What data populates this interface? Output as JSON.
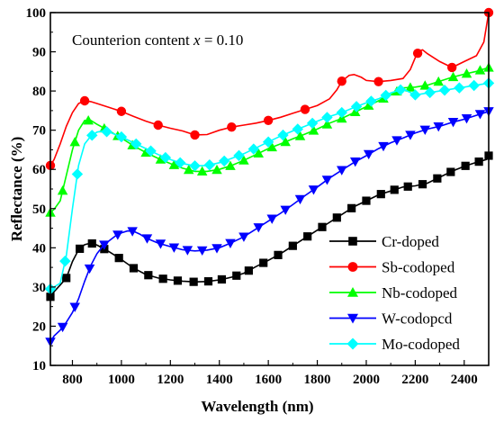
{
  "chart_data": {
    "type": "line",
    "title": "",
    "annotation_prefix": "Counterion content ",
    "annotation_var": "x",
    "annotation_suffix": " = 0.10",
    "xlabel": "Wavelength (nm)",
    "ylabel": "Reflectance (%)",
    "xlim": [
      710,
      2500
    ],
    "ylim": [
      10,
      100
    ],
    "xticks": [
      800,
      1000,
      1200,
      1400,
      1600,
      1800,
      2000,
      2200,
      2400
    ],
    "xtick_labels": [
      "800",
      "1000",
      "1200",
      "1400",
      "1600",
      "1800",
      "2000",
      "2200",
      "2400"
    ],
    "yticks": [
      10,
      20,
      30,
      40,
      50,
      60,
      70,
      80,
      90,
      100
    ],
    "ytick_labels": [
      "10",
      "20",
      "30",
      "40",
      "50",
      "60",
      "70",
      "80",
      "90",
      "100"
    ],
    "grid": false,
    "legend_position": "bottom-right",
    "series": [
      {
        "name": "Cr-doped",
        "color": "#000000",
        "marker": "square",
        "x": [
          710,
          725,
          750,
          775,
          800,
          825,
          850,
          875,
          900,
          950,
          1000,
          1050,
          1100,
          1150,
          1200,
          1250,
          1300,
          1350,
          1400,
          1450,
          1500,
          1550,
          1600,
          1650,
          1700,
          1750,
          1800,
          1850,
          1900,
          1950,
          2000,
          2050,
          2100,
          2150,
          2200,
          2250,
          2300,
          2350,
          2400,
          2450,
          2490,
          2500
        ],
        "y": [
          27.5,
          28.8,
          30.5,
          32.3,
          36.5,
          39.5,
          40.8,
          41.2,
          40.7,
          39.0,
          37.0,
          34.8,
          33.2,
          32.3,
          31.8,
          31.5,
          31.3,
          31.4,
          31.8,
          32.5,
          33.5,
          35.2,
          36.8,
          38.5,
          40.5,
          42.5,
          44.5,
          46.5,
          48.5,
          50.5,
          52.0,
          53.5,
          54.5,
          55.5,
          55.8,
          56.5,
          58.0,
          59.5,
          60.8,
          61.8,
          62.5,
          63.5
        ],
        "markers_x": [
          710,
          775,
          830,
          880,
          930,
          990,
          1050,
          1110,
          1170,
          1230,
          1295,
          1355,
          1410,
          1470,
          1520,
          1580,
          1640,
          1700,
          1760,
          1820,
          1880,
          1940,
          2000,
          2060,
          2115,
          2170,
          2230,
          2290,
          2345,
          2405,
          2460,
          2500
        ]
      },
      {
        "name": "Sb-codoped",
        "color": "#ff0000",
        "marker": "circle",
        "x": [
          710,
          725,
          750,
          775,
          800,
          825,
          850,
          875,
          900,
          950,
          1000,
          1050,
          1100,
          1150,
          1200,
          1250,
          1300,
          1350,
          1400,
          1450,
          1500,
          1550,
          1600,
          1650,
          1700,
          1750,
          1800,
          1850,
          1880,
          1900,
          1930,
          1950,
          1980,
          2000,
          2050,
          2100,
          2150,
          2180,
          2200,
          2215,
          2230,
          2250,
          2300,
          2350,
          2400,
          2450,
          2480,
          2500
        ],
        "y": [
          61.0,
          62.5,
          66.5,
          71.0,
          74.5,
          76.8,
          77.5,
          77.3,
          76.8,
          75.8,
          74.8,
          73.5,
          72.3,
          71.3,
          70.5,
          69.8,
          68.8,
          68.9,
          70.0,
          70.8,
          71.3,
          71.8,
          72.5,
          73.3,
          74.3,
          75.3,
          76.3,
          78.0,
          80.3,
          82.5,
          84.0,
          84.2,
          83.5,
          82.7,
          82.4,
          82.7,
          83.2,
          85.5,
          88.5,
          90.2,
          90.5,
          89.5,
          87.5,
          86.0,
          87.5,
          89.0,
          92.5,
          100.0
        ],
        "markers_x": [
          710,
          850,
          1000,
          1150,
          1300,
          1450,
          1600,
          1750,
          1900,
          2050,
          2210,
          2350,
          2500
        ]
      },
      {
        "name": "Nb-codoped",
        "color": "#00ff00",
        "marker": "triangle-up",
        "x": [
          710,
          725,
          750,
          775,
          800,
          825,
          850,
          875,
          900,
          950,
          1000,
          1050,
          1100,
          1150,
          1200,
          1250,
          1300,
          1350,
          1400,
          1450,
          1500,
          1550,
          1600,
          1650,
          1700,
          1750,
          1800,
          1850,
          1900,
          1950,
          2000,
          2050,
          2100,
          2150,
          2200,
          2250,
          2300,
          2350,
          2400,
          2450,
          2500
        ],
        "y": [
          49.0,
          49.8,
          52.0,
          58.5,
          65.0,
          70.0,
          72.5,
          72.5,
          71.5,
          69.8,
          68.0,
          66.0,
          64.3,
          62.8,
          61.5,
          60.3,
          59.5,
          59.5,
          60.0,
          61.0,
          62.3,
          63.8,
          65.3,
          66.5,
          67.8,
          69.0,
          70.3,
          71.8,
          73.0,
          74.5,
          76.0,
          77.5,
          79.0,
          80.8,
          81.0,
          81.5,
          82.5,
          83.5,
          84.3,
          85.0,
          86.0
        ],
        "markers_x": [
          710,
          760,
          810,
          865,
          930,
          985,
          1045,
          1100,
          1160,
          1215,
          1275,
          1330,
          1390,
          1445,
          1500,
          1560,
          1615,
          1670,
          1730,
          1785,
          1840,
          1900,
          1955,
          2010,
          2070,
          2125,
          2180,
          2240,
          2295,
          2355,
          2410,
          2465,
          2500
        ]
      },
      {
        "name": "W-codopcd",
        "color": "#0000ff",
        "marker": "triangle-down",
        "x": [
          710,
          725,
          750,
          775,
          800,
          825,
          850,
          875,
          900,
          925,
          950,
          975,
          1000,
          1025,
          1050,
          1075,
          1100,
          1150,
          1200,
          1250,
          1300,
          1350,
          1400,
          1450,
          1500,
          1550,
          1600,
          1650,
          1700,
          1750,
          1800,
          1850,
          1900,
          1950,
          2000,
          2050,
          2100,
          2150,
          2200,
          2250,
          2300,
          2350,
          2400,
          2450,
          2500
        ],
        "y": [
          16.0,
          17.5,
          19.0,
          21.0,
          23.5,
          27.0,
          31.5,
          35.5,
          38.5,
          40.5,
          41.8,
          43.0,
          43.8,
          44.3,
          44.2,
          43.5,
          42.5,
          41.2,
          40.3,
          39.5,
          39.2,
          39.4,
          40.0,
          41.3,
          42.8,
          44.8,
          46.8,
          48.8,
          51.0,
          53.3,
          55.5,
          57.8,
          59.8,
          61.8,
          63.5,
          65.3,
          66.8,
          68.0,
          69.3,
          70.3,
          71.0,
          72.0,
          72.8,
          73.8,
          74.8
        ],
        "markers_x": [
          710,
          760,
          810,
          870,
          930,
          985,
          1045,
          1105,
          1160,
          1215,
          1270,
          1330,
          1390,
          1445,
          1500,
          1560,
          1615,
          1670,
          1730,
          1785,
          1840,
          1900,
          1955,
          2010,
          2070,
          2125,
          2180,
          2240,
          2295,
          2355,
          2410,
          2465,
          2500
        ]
      },
      {
        "name": "Mo-codoped",
        "color": "#00ffff",
        "marker": "diamond",
        "x": [
          710,
          725,
          750,
          775,
          800,
          825,
          850,
          875,
          900,
          925,
          950,
          1000,
          1050,
          1100,
          1150,
          1200,
          1250,
          1300,
          1350,
          1400,
          1450,
          1500,
          1550,
          1600,
          1650,
          1700,
          1750,
          1800,
          1850,
          1900,
          1950,
          2000,
          2050,
          2100,
          2150,
          2200,
          2250,
          2300,
          2350,
          2400,
          2450,
          2500
        ],
        "y": [
          29.5,
          30.0,
          31.0,
          38.0,
          50.0,
          61.0,
          66.5,
          68.5,
          69.5,
          69.8,
          69.5,
          68.3,
          66.8,
          65.3,
          63.8,
          62.5,
          61.5,
          60.9,
          61.0,
          61.7,
          62.8,
          64.0,
          65.5,
          67.0,
          68.5,
          69.8,
          71.0,
          72.3,
          73.5,
          74.5,
          75.8,
          77.0,
          78.0,
          79.5,
          80.5,
          79.0,
          79.5,
          80.0,
          80.5,
          81.0,
          81.5,
          82.0
        ],
        "markers_x": [
          710,
          770,
          820,
          880,
          940,
          1000,
          1060,
          1120,
          1180,
          1240,
          1300,
          1360,
          1420,
          1480,
          1540,
          1600,
          1660,
          1720,
          1780,
          1840,
          1900,
          1960,
          2020,
          2080,
          2140,
          2200,
          2260,
          2320,
          2380,
          2440,
          2500
        ]
      }
    ]
  }
}
